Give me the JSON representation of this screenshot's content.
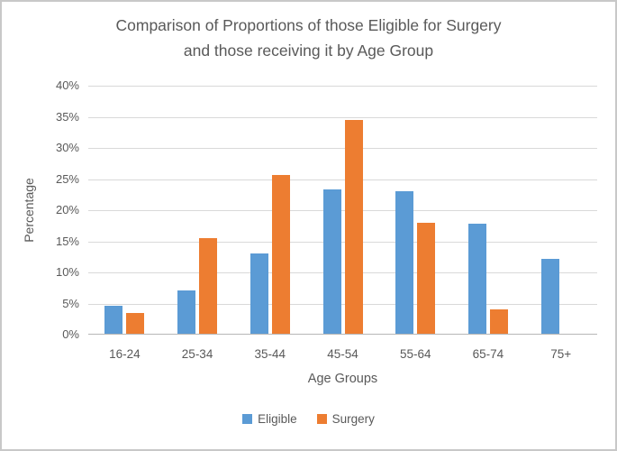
{
  "chart_data": {
    "type": "bar",
    "title": "Comparison of Proportions of those Eligible for Surgery and those receiving it by Age Group",
    "title_lines": [
      "Comparison of Proportions of those Eligible for Surgery",
      "and those receiving it by Age Group"
    ],
    "categories": [
      "16-24",
      "25-34",
      "35-44",
      "45-54",
      "55-64",
      "65-74",
      "75+"
    ],
    "series": [
      {
        "name": "Eligible",
        "color": "#5B9BD5",
        "values": [
          4.5,
          6.9,
          12.9,
          23.2,
          22.9,
          17.7,
          12.0
        ]
      },
      {
        "name": "Surgery",
        "color": "#ED7D31",
        "values": [
          3.4,
          15.3,
          25.5,
          34.3,
          17.9,
          3.9,
          0
        ]
      }
    ],
    "xlabel": "Age Groups",
    "ylabel": "Percentage",
    "ylim": [
      0,
      40
    ],
    "ytick_step": 5,
    "ytick_suffix": "%",
    "grid": true,
    "legend_position": "bottom",
    "gridline_color": "#d9d9d9",
    "axis_line_color": "#b7b7b7",
    "text_color": "#595959"
  }
}
